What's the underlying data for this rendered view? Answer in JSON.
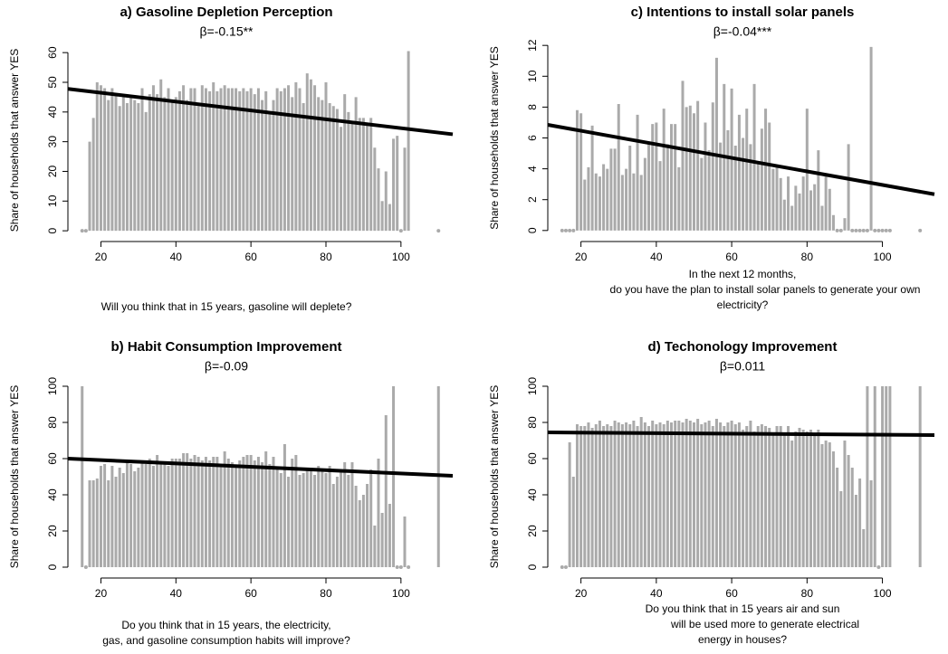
{
  "chart_data": [
    {
      "type": "bar",
      "title": "a) Gasoline Depletion Perception",
      "subtitle": "β=-0.15**",
      "ylabel": "Share of households that answer YES",
      "xlabel": [
        "Will you think that in 15 years, gasoline will deplete?"
      ],
      "color": "#aaaaaa",
      "x": [
        15,
        16,
        17,
        18,
        19,
        20,
        21,
        22,
        23,
        24,
        25,
        26,
        27,
        28,
        29,
        30,
        31,
        32,
        33,
        34,
        35,
        36,
        37,
        38,
        39,
        40,
        41,
        42,
        43,
        44,
        45,
        46,
        47,
        48,
        49,
        50,
        51,
        52,
        53,
        54,
        55,
        56,
        57,
        58,
        59,
        60,
        61,
        62,
        63,
        64,
        65,
        66,
        67,
        68,
        69,
        70,
        71,
        72,
        73,
        74,
        75,
        76,
        77,
        78,
        79,
        80,
        81,
        82,
        83,
        84,
        85,
        86,
        87,
        88,
        89,
        90,
        91,
        92,
        93,
        94,
        95,
        96,
        97,
        98,
        99,
        100,
        101,
        102,
        110
      ],
      "values": [
        0,
        0,
        30,
        38,
        50,
        49,
        48,
        44,
        48,
        46,
        42,
        45,
        43,
        45,
        44,
        43,
        48,
        40,
        46,
        49,
        46,
        51,
        45,
        48,
        44,
        45,
        47,
        49,
        44,
        48,
        48,
        42,
        49,
        48,
        47,
        50,
        47,
        48,
        49,
        48,
        48,
        48,
        47,
        48,
        47,
        48,
        46,
        48,
        44,
        47,
        40,
        44,
        48,
        47,
        48,
        49,
        45,
        50,
        48,
        43,
        53,
        51,
        49,
        45,
        44,
        50,
        43,
        42,
        41,
        35,
        46,
        40,
        37,
        45,
        38,
        38,
        36,
        38,
        28,
        21,
        10,
        20,
        9,
        31,
        32,
        0,
        28,
        60.5,
        0
      ],
      "fit": {
        "x": [
          11.2,
          113.8
        ],
        "y": [
          47.8,
          32.5
        ]
      },
      "xlim": [
        11.2,
        113.8
      ],
      "ylim": [
        -2.4,
        63.4
      ],
      "xticks": [
        20,
        40,
        60,
        80,
        100
      ],
      "yticks": [
        0,
        10,
        20,
        30,
        40,
        50,
        60
      ]
    },
    {
      "type": "bar",
      "title": "c) Intentions to install solar panels",
      "subtitle": "β=-0.04***",
      "ylabel": "Share of households that answer YES",
      "xlabel": [
        "In the next 12 months,",
        "do you have the plan to install solar panels to generate your own",
        "electricity?"
      ],
      "color": "#aaaaaa",
      "x": [
        15,
        16,
        17,
        18,
        19,
        20,
        21,
        22,
        23,
        24,
        25,
        26,
        27,
        28,
        29,
        30,
        31,
        32,
        33,
        34,
        35,
        36,
        37,
        38,
        39,
        40,
        41,
        42,
        43,
        44,
        45,
        46,
        47,
        48,
        49,
        50,
        51,
        52,
        53,
        54,
        55,
        56,
        57,
        58,
        59,
        60,
        61,
        62,
        63,
        64,
        65,
        66,
        67,
        68,
        69,
        70,
        71,
        72,
        73,
        74,
        75,
        76,
        77,
        78,
        79,
        80,
        81,
        82,
        83,
        84,
        85,
        86,
        87,
        88,
        89,
        90,
        91,
        92,
        93,
        94,
        95,
        96,
        97,
        98,
        99,
        100,
        101,
        102,
        110
      ],
      "values": [
        0,
        0,
        0,
        0,
        7.8,
        7.6,
        3.3,
        4.1,
        6.8,
        3.7,
        3.5,
        4.3,
        4.0,
        5.3,
        5.3,
        8.2,
        3.6,
        4.0,
        5.5,
        3.7,
        7.5,
        3.6,
        4.7,
        5.6,
        6.9,
        7.0,
        4.5,
        7.9,
        5.6,
        6.9,
        6.9,
        4.1,
        9.7,
        8.0,
        8.1,
        7.6,
        8.4,
        4.7,
        7.0,
        5.2,
        8.3,
        11.2,
        5.7,
        9.5,
        6.5,
        9.2,
        5.5,
        7.5,
        6.0,
        7.9,
        5.6,
        9.5,
        4.5,
        6.6,
        7.9,
        7.0,
        4.0,
        4.1,
        3.4,
        2.0,
        3.5,
        1.6,
        2.9,
        2.4,
        3.5,
        7.9,
        2.6,
        3.0,
        5.2,
        1.6,
        3.5,
        2.7,
        1.0,
        0,
        0,
        0.8,
        5.6,
        0,
        0,
        0,
        0,
        0,
        11.9,
        0,
        0,
        0,
        0,
        0,
        0
      ],
      "fit": {
        "x": [
          11.2,
          113.8
        ],
        "y": [
          6.85,
          2.35
        ]
      },
      "xlim": [
        11.2,
        113.8
      ],
      "ylim": [
        -0.48,
        12.48
      ],
      "xticks": [
        20,
        40,
        60,
        80,
        100
      ],
      "yticks": [
        0,
        2,
        4,
        6,
        8,
        10,
        12
      ]
    },
    {
      "type": "bar",
      "title": "b) Habit Consumption Improvement",
      "subtitle": "β=-0.09",
      "ylabel": "Share of households that answer YES",
      "xlabel": [
        "Do you think that in 15 years, the electricity,",
        "gas, and gasoline consumption habits will improve?"
      ],
      "color": "#aaaaaa",
      "x": [
        15,
        16,
        17,
        18,
        19,
        20,
        21,
        22,
        23,
        24,
        25,
        26,
        27,
        28,
        29,
        30,
        31,
        32,
        33,
        34,
        35,
        36,
        37,
        38,
        39,
        40,
        41,
        42,
        43,
        44,
        45,
        46,
        47,
        48,
        49,
        50,
        51,
        52,
        53,
        54,
        55,
        56,
        57,
        58,
        59,
        60,
        61,
        62,
        63,
        64,
        65,
        66,
        67,
        68,
        69,
        70,
        71,
        72,
        73,
        74,
        75,
        76,
        77,
        78,
        79,
        80,
        81,
        82,
        83,
        84,
        85,
        86,
        87,
        88,
        89,
        90,
        91,
        92,
        93,
        94,
        95,
        96,
        97,
        98,
        99,
        100,
        101,
        102,
        110
      ],
      "values": [
        100,
        0,
        48,
        48,
        49,
        56,
        57,
        48,
        56,
        50,
        55,
        52,
        58,
        57,
        53,
        55,
        58,
        57,
        60,
        56,
        62,
        57,
        58,
        56,
        60,
        60,
        60,
        63,
        63,
        60,
        62,
        61,
        59,
        61,
        59,
        61,
        61,
        57,
        64,
        60,
        58,
        55,
        59,
        61,
        62,
        62,
        59,
        61,
        58,
        64,
        57,
        61,
        55,
        52,
        68,
        50,
        60,
        62,
        51,
        52,
        54,
        53,
        51,
        56,
        54,
        52,
        56,
        46,
        50,
        53,
        58,
        51,
        58,
        45,
        37,
        40,
        46,
        54,
        23,
        60,
        30,
        84,
        35,
        100,
        0,
        0,
        28,
        0,
        100
      ],
      "fit": {
        "x": [
          11.2,
          113.8
        ],
        "y": [
          60,
          50.5
        ]
      },
      "xlim": [
        11.2,
        113.8
      ],
      "ylim": [
        -4,
        104
      ],
      "xticks": [
        20,
        40,
        60,
        80,
        100
      ],
      "yticks": [
        0,
        20,
        40,
        60,
        80,
        100
      ]
    },
    {
      "type": "bar",
      "title": "d) Techonology Improvement",
      "subtitle": "β=0.011",
      "ylabel": "Share of households that answer YES",
      "xlabel": [
        "Do you think that in 15 years air and sun",
        "will be used more to generate electrical",
        "energy in houses?"
      ],
      "color": "#aaaaaa",
      "x": [
        15,
        16,
        17,
        18,
        19,
        20,
        21,
        22,
        23,
        24,
        25,
        26,
        27,
        28,
        29,
        30,
        31,
        32,
        33,
        34,
        35,
        36,
        37,
        38,
        39,
        40,
        41,
        42,
        43,
        44,
        45,
        46,
        47,
        48,
        49,
        50,
        51,
        52,
        53,
        54,
        55,
        56,
        57,
        58,
        59,
        60,
        61,
        62,
        63,
        64,
        65,
        66,
        67,
        68,
        69,
        70,
        71,
        72,
        73,
        74,
        75,
        76,
        77,
        78,
        79,
        80,
        81,
        82,
        83,
        84,
        85,
        86,
        87,
        88,
        89,
        90,
        91,
        92,
        93,
        94,
        95,
        96,
        97,
        98,
        99,
        100,
        101,
        102,
        110
      ],
      "values": [
        0,
        0,
        69,
        50,
        79,
        78,
        78,
        80,
        77,
        79,
        81,
        78,
        79,
        78,
        81,
        80,
        79,
        80,
        79,
        81,
        78,
        83,
        80,
        78,
        81,
        79,
        80,
        79,
        81,
        80,
        81,
        81,
        80,
        82,
        81,
        80,
        82,
        79,
        80,
        81,
        78,
        82,
        80,
        78,
        80,
        81,
        79,
        80,
        76,
        78,
        81,
        75,
        78,
        79,
        78,
        77,
        73,
        78,
        78,
        74,
        78,
        70,
        75,
        77,
        76,
        75,
        76,
        73,
        76,
        68,
        70,
        69,
        64,
        55,
        42,
        70,
        62,
        55,
        40,
        49,
        21,
        100,
        48,
        100,
        0,
        100,
        100,
        100,
        100
      ],
      "fit": {
        "x": [
          11.2,
          113.8
        ],
        "y": [
          74.5,
          73
        ]
      },
      "xlim": [
        11.2,
        113.8
      ],
      "ylim": [
        -4,
        104
      ],
      "xticks": [
        20,
        40,
        60,
        80,
        100
      ],
      "yticks": [
        0,
        20,
        40,
        60,
        80,
        100
      ]
    }
  ]
}
